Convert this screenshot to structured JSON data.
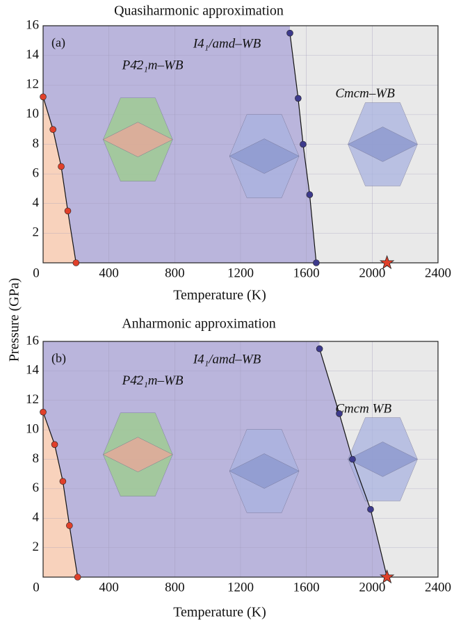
{
  "chart_data": [
    {
      "type": "phase",
      "title": "Quasiharmonic approximation",
      "panel_label": "(a)",
      "x_label": "Temperature (K)",
      "y_label": "Pressure (GPa)",
      "xlim": [
        0,
        2400
      ],
      "xticks": [
        0,
        400,
        800,
        1200,
        1600,
        2000,
        2400
      ],
      "ylim": [
        0,
        16
      ],
      "yticks": [
        2,
        4,
        6,
        8,
        10,
        12,
        14,
        16
      ],
      "grid": true,
      "region_colors": [
        "#f8d2bc",
        "#bab5dc",
        "#e9e9e9"
      ],
      "annotations": [
        "P4̄2₁m–WB",
        "I4₁/amd–WB",
        "Cmcm–WB"
      ],
      "series": [
        {
          "color": "#e0402a",
          "x": [
            0,
            60,
            110,
            150,
            200
          ],
          "values": [
            11.2,
            9,
            6.5,
            3.5,
            0
          ]
        },
        {
          "color": "#3d3a8c",
          "x": [
            1500,
            1550,
            1580,
            1620,
            1660
          ],
          "values": [
            15.5,
            11.1,
            8,
            4.6,
            0
          ]
        }
      ],
      "star": {
        "color": "#e0402a",
        "x": [
          2090
        ],
        "values": [
          0
        ]
      }
    },
    {
      "type": "phase",
      "title": "Anharmonic approximation",
      "panel_label": "(b)",
      "x_label": "Temperature (K)",
      "xlim": [
        0,
        2400
      ],
      "xticks": [
        0,
        400,
        800,
        1200,
        1600,
        2000,
        2400
      ],
      "ylim": [
        0,
        16
      ],
      "yticks": [
        2,
        4,
        6,
        8,
        10,
        12,
        14,
        16
      ],
      "grid": true,
      "region_colors": [
        "#f8d2bc",
        "#bab5dc",
        "#e9e9e9"
      ],
      "annotations": [
        "P4̄2₁m–WB",
        "I4₁/amd–WB",
        "Cmcm WB"
      ],
      "series": [
        {
          "color": "#e0402a",
          "x": [
            0,
            70,
            120,
            160,
            210
          ],
          "values": [
            11.2,
            9,
            6.5,
            3.5,
            0
          ]
        },
        {
          "color": "#3d3a8c",
          "x": [
            1680,
            1800,
            1880,
            1990,
            2090
          ],
          "values": [
            15.5,
            11.1,
            8,
            4.6,
            0
          ]
        }
      ],
      "star": {
        "color": "#e0402a",
        "x": [
          2090
        ],
        "values": [
          0
        ]
      }
    }
  ]
}
